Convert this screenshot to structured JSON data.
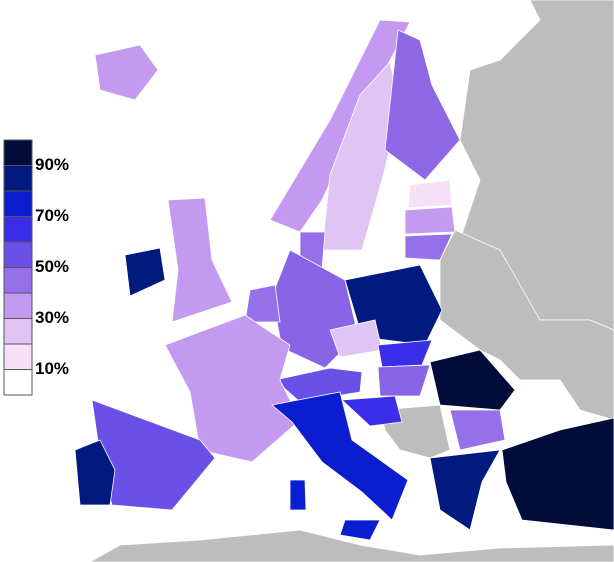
{
  "legend": {
    "swatches": [
      "#000d3a",
      "#001a80",
      "#0a1ed0",
      "#3a2ee8",
      "#6a50e8",
      "#9670ea",
      "#c49af0",
      "#e0c4f4",
      "#f6e0f8",
      "#ffffff"
    ],
    "labels": [
      "90%",
      "70%",
      "50%",
      "30%",
      "10%"
    ]
  }
}
